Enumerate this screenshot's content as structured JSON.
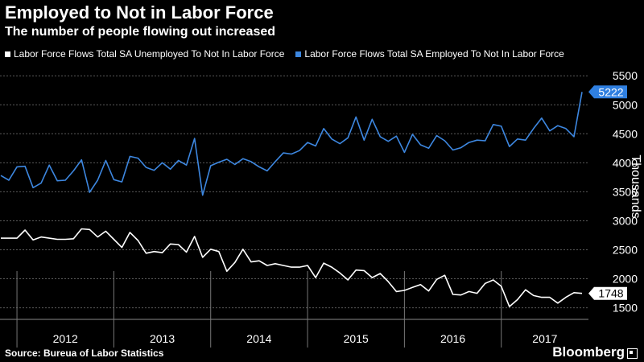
{
  "header": {
    "title": "Employed to Not in Labor Force",
    "subtitle": "The number of people flowing out increased"
  },
  "footer": {
    "source": "Source: Bureua of Labor Statistics",
    "brand": "Bloomberg"
  },
  "colors": {
    "employed": "#3d87e0",
    "unemployed": "#ffffff",
    "grid": "#5a5a5a",
    "badge_employed": "#2f7fe0",
    "badge_unemployed": "#ffffff"
  },
  "chart_data": {
    "type": "line",
    "title": "Employed to Not in Labor Force",
    "subtitle": "The number of people flowing out increased",
    "ylabel": "Thousands",
    "ylim": [
      1300,
      5600
    ],
    "yticks": [
      1500,
      2000,
      2500,
      3000,
      3500,
      4000,
      4500,
      5000,
      5500
    ],
    "x_axis": {
      "start": "2011-11",
      "years": [
        "2012",
        "2013",
        "2014",
        "2015",
        "2016",
        "2017"
      ],
      "frequency": "monthly"
    },
    "grid": true,
    "legend_position": "top-left",
    "series": [
      {
        "name": "Labor Force Flows Total SA Unemployed To Not In Labor Force",
        "key": "unemployed",
        "last_label": "1748",
        "values": [
          2700,
          2700,
          2700,
          2840,
          2670,
          2720,
          2700,
          2680,
          2680,
          2690,
          2860,
          2850,
          2720,
          2820,
          2680,
          2540,
          2800,
          2660,
          2440,
          2470,
          2450,
          2600,
          2590,
          2460,
          2730,
          2370,
          2510,
          2470,
          2130,
          2280,
          2510,
          2290,
          2310,
          2230,
          2260,
          2230,
          2200,
          2200,
          2230,
          2020,
          2270,
          2200,
          2100,
          1980,
          2150,
          2140,
          2020,
          2090,
          1950,
          1780,
          1800,
          1850,
          1900,
          1790,
          1990,
          2060,
          1730,
          1720,
          1780,
          1750,
          1920,
          1980,
          1870,
          1520,
          1640,
          1810,
          1710,
          1680,
          1680,
          1580,
          1680,
          1760,
          1748
        ]
      },
      {
        "name": "Labor Force Flows Total SA Employed To Not In Labor Force",
        "key": "employed",
        "last_label": "5222",
        "values": [
          3780,
          3700,
          3930,
          3940,
          3570,
          3650,
          3960,
          3690,
          3700,
          3860,
          4050,
          3490,
          3700,
          4040,
          3710,
          3670,
          4110,
          4080,
          3920,
          3870,
          4000,
          3890,
          4040,
          3960,
          4420,
          3440,
          3950,
          4010,
          4060,
          3970,
          4070,
          4020,
          3930,
          3860,
          4020,
          4170,
          4150,
          4210,
          4350,
          4290,
          4590,
          4410,
          4330,
          4430,
          4790,
          4390,
          4750,
          4450,
          4370,
          4460,
          4180,
          4490,
          4310,
          4250,
          4470,
          4380,
          4220,
          4260,
          4350,
          4390,
          4380,
          4660,
          4630,
          4280,
          4410,
          4390,
          4590,
          4770,
          4550,
          4640,
          4590,
          4450,
          5222
        ]
      }
    ]
  }
}
